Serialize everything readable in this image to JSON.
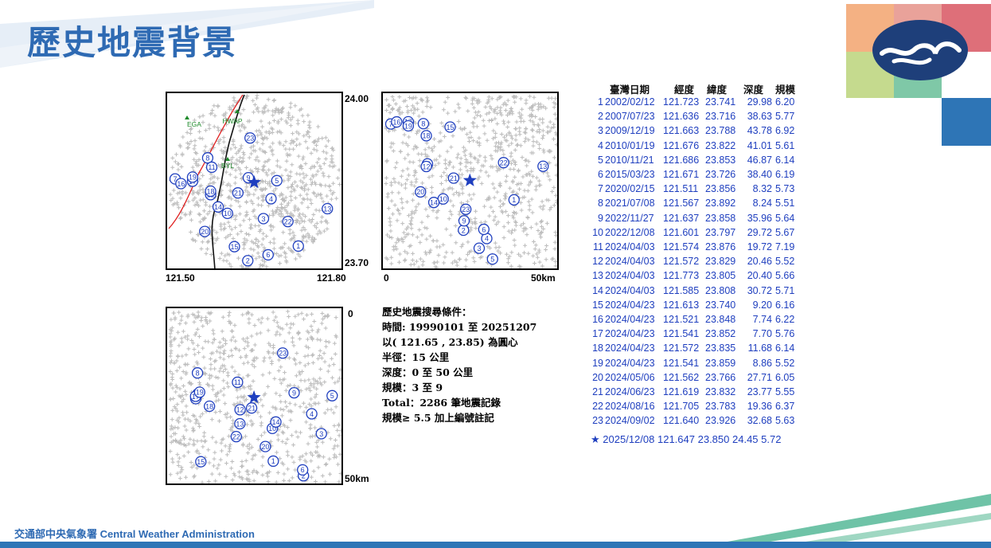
{
  "page": {
    "title": "歷史地震背景"
  },
  "footer": {
    "text": "交通部中央氣象署 Central Weather Administration"
  },
  "colors": {
    "title": "#2e6ab3",
    "marker": "#1f3fbf",
    "background_cross": "#bcbcbc",
    "fault": "#e02020",
    "coast": "#111111",
    "station": "#1e8a2a",
    "footer_stripe": "#6fc3a7"
  },
  "map_panel": {
    "lat_top": "24.00",
    "lat_bottom": "23.70",
    "lon_left": "121.50",
    "lon_right": "121.80",
    "stations": [
      "EGA",
      "HWAP",
      "BYL"
    ]
  },
  "section_panel_ew": {
    "left_label": "0",
    "right_label": "50km"
  },
  "section_panel_ns": {
    "top_label": "0",
    "bottom_label": "50km"
  },
  "conditions": {
    "heading": "歷史地震搜尋條件：",
    "time": "時間: 19990101 至 20251207",
    "center": "以( 121.65 , 23.85) 為圓心",
    "radius": "半徑：15 公里",
    "depth": "深度：0 至 50 公里",
    "magnitude": "規模：3 至 9",
    "total": "Total：2286 筆地震記錄",
    "note": "規模≥ 5.5 加上編號註記"
  },
  "table": {
    "headers": {
      "date": "臺灣日期",
      "lon": "經度",
      "lat": "緯度",
      "depth": "深度",
      "mag": "規模"
    },
    "rows": [
      {
        "idx": "1",
        "date": "2002/02/12",
        "lon": "121.723",
        "lat": "23.741",
        "depth": "29.98",
        "mag": "6.20"
      },
      {
        "idx": "2",
        "date": "2007/07/23",
        "lon": "121.636",
        "lat": "23.716",
        "depth": "38.63",
        "mag": "5.77"
      },
      {
        "idx": "3",
        "date": "2009/12/19",
        "lon": "121.663",
        "lat": "23.788",
        "depth": "43.78",
        "mag": "6.92"
      },
      {
        "idx": "4",
        "date": "2010/01/19",
        "lon": "121.676",
        "lat": "23.822",
        "depth": "41.01",
        "mag": "5.61"
      },
      {
        "idx": "5",
        "date": "2010/11/21",
        "lon": "121.686",
        "lat": "23.853",
        "depth": "46.87",
        "mag": "6.14"
      },
      {
        "idx": "6",
        "date": "2015/03/23",
        "lon": "121.671",
        "lat": "23.726",
        "depth": "38.40",
        "mag": "6.19"
      },
      {
        "idx": "7",
        "date": "2020/02/15",
        "lon": "121.511",
        "lat": "23.856",
        "depth": "8.32",
        "mag": "5.73"
      },
      {
        "idx": "8",
        "date": "2021/07/08",
        "lon": "121.567",
        "lat": "23.892",
        "depth": "8.24",
        "mag": "5.51"
      },
      {
        "idx": "9",
        "date": "2022/11/27",
        "lon": "121.637",
        "lat": "23.858",
        "depth": "35.96",
        "mag": "5.64"
      },
      {
        "idx": "10",
        "date": "2022/12/08",
        "lon": "121.601",
        "lat": "23.797",
        "depth": "29.72",
        "mag": "5.67"
      },
      {
        "idx": "11",
        "date": "2024/04/03",
        "lon": "121.574",
        "lat": "23.876",
        "depth": "19.72",
        "mag": "7.19"
      },
      {
        "idx": "12",
        "date": "2024/04/03",
        "lon": "121.572",
        "lat": "23.829",
        "depth": "20.46",
        "mag": "5.52"
      },
      {
        "idx": "13",
        "date": "2024/04/03",
        "lon": "121.773",
        "lat": "23.805",
        "depth": "20.40",
        "mag": "5.66"
      },
      {
        "idx": "14",
        "date": "2024/04/03",
        "lon": "121.585",
        "lat": "23.808",
        "depth": "30.72",
        "mag": "5.71"
      },
      {
        "idx": "15",
        "date": "2024/04/23",
        "lon": "121.613",
        "lat": "23.740",
        "depth": "9.20",
        "mag": "6.16"
      },
      {
        "idx": "16",
        "date": "2024/04/23",
        "lon": "121.521",
        "lat": "23.848",
        "depth": "7.74",
        "mag": "6.22"
      },
      {
        "idx": "17",
        "date": "2024/04/23",
        "lon": "121.541",
        "lat": "23.852",
        "depth": "7.70",
        "mag": "5.76"
      },
      {
        "idx": "18",
        "date": "2024/04/23",
        "lon": "121.572",
        "lat": "23.835",
        "depth": "11.68",
        "mag": "6.14"
      },
      {
        "idx": "19",
        "date": "2024/04/23",
        "lon": "121.541",
        "lat": "23.859",
        "depth": "8.86",
        "mag": "5.52"
      },
      {
        "idx": "20",
        "date": "2024/05/06",
        "lon": "121.562",
        "lat": "23.766",
        "depth": "27.71",
        "mag": "6.05"
      },
      {
        "idx": "21",
        "date": "2024/06/23",
        "lon": "121.619",
        "lat": "23.832",
        "depth": "23.77",
        "mag": "5.55"
      },
      {
        "idx": "22",
        "date": "2024/08/16",
        "lon": "121.705",
        "lat": "23.783",
        "depth": "19.36",
        "mag": "6.37"
      },
      {
        "idx": "23",
        "date": "2024/09/02",
        "lon": "121.640",
        "lat": "23.926",
        "depth": "32.68",
        "mag": "5.63"
      }
    ],
    "current": {
      "symbol": "★",
      "date": "2025/12/08",
      "lon": "121.647",
      "lat": "23.850",
      "depth": "24.45",
      "mag": "5.72"
    }
  }
}
